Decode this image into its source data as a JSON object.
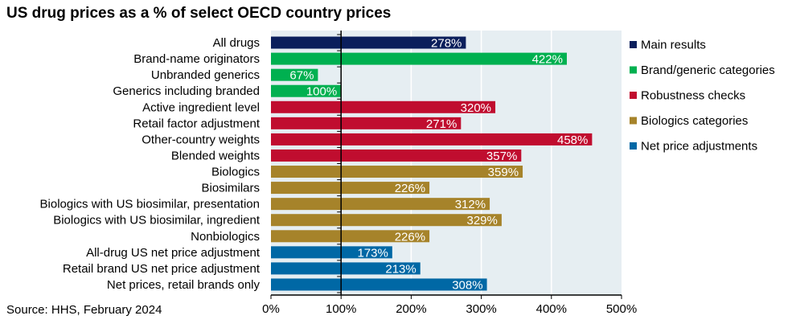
{
  "chart_data": {
    "type": "bar",
    "orientation": "horizontal",
    "title": "US drug prices as a % of select OECD country prices",
    "source": "Source: HHS, February 2024",
    "xlim": [
      0,
      500
    ],
    "xticks": [
      "0%",
      "100%",
      "200%",
      "300%",
      "400%",
      "500%"
    ],
    "reference_line": 100,
    "grid": true,
    "legend_position": "right",
    "groups": [
      {
        "name": "Main results",
        "color": "#0b1f5c"
      },
      {
        "name": "Brand/generic categories",
        "color": "#00b050"
      },
      {
        "name": "Robustness checks",
        "color": "#c00d2f"
      },
      {
        "name": "Biologics categories",
        "color": "#a6832a"
      },
      {
        "name": "Net price adjustments",
        "color": "#0068a5"
      }
    ],
    "bars": [
      {
        "label": "All drugs",
        "value": 278,
        "text": "278%",
        "group": 0
      },
      {
        "label": "Brand-name originators",
        "value": 422,
        "text": "422%",
        "group": 1
      },
      {
        "label": "Unbranded generics",
        "value": 67,
        "text": "67%",
        "group": 1
      },
      {
        "label": "Generics including branded",
        "value": 100,
        "text": "100%",
        "group": 1
      },
      {
        "label": "Active ingredient level",
        "value": 320,
        "text": "320%",
        "group": 2
      },
      {
        "label": "Retail factor adjustment",
        "value": 271,
        "text": "271%",
        "group": 2
      },
      {
        "label": "Other-country weights",
        "value": 458,
        "text": "458%",
        "group": 2
      },
      {
        "label": "Blended weights",
        "value": 357,
        "text": "357%",
        "group": 2
      },
      {
        "label": "Biologics",
        "value": 359,
        "text": "359%",
        "group": 3
      },
      {
        "label": "Biosimilars",
        "value": 226,
        "text": "226%",
        "group": 3
      },
      {
        "label": "Biologics with US biosimilar, presentation",
        "value": 312,
        "text": "312%",
        "group": 3
      },
      {
        "label": "Biologics with US biosimilar, ingredient",
        "value": 329,
        "text": "329%",
        "group": 3
      },
      {
        "label": "Nonbiologics",
        "value": 226,
        "text": "226%",
        "group": 3
      },
      {
        "label": "All-drug US net price adjustment",
        "value": 173,
        "text": "173%",
        "group": 4
      },
      {
        "label": "Retail brand US net price adjustment",
        "value": 213,
        "text": "213%",
        "group": 4
      },
      {
        "label": "Net prices, retail brands only",
        "value": 308,
        "text": "308%",
        "group": 4
      }
    ]
  }
}
